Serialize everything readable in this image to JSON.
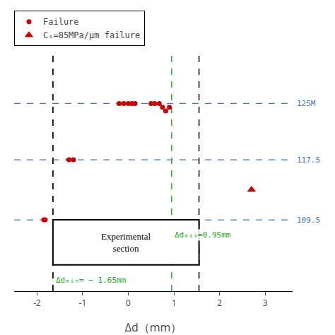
{
  "chart_data": {
    "type": "scatter",
    "xlabel": "Δd（mm）",
    "xlim": [
      -2.5,
      3.6
    ],
    "xticks": [
      -2,
      -1,
      0,
      1,
      2,
      3
    ],
    "ylim": [
      100,
      132
    ],
    "tick_labels": "x",
    "grid": false,
    "legend": "upper left",
    "series": [
      {
        "name": "Failure",
        "type": "scatter",
        "marker": "circle",
        "color": "#CC0000",
        "x": [
          -1.85,
          -1.82,
          -1.3,
          -1.2,
          -0.2,
          -0.1,
          0.0,
          0.08,
          0.15,
          0.5,
          0.58,
          0.68,
          0.75,
          0.82,
          0.9
        ],
        "values": [
          109.5,
          109.5,
          117.5,
          117.5,
          125.0,
          125.0,
          125.0,
          125.0,
          125.0,
          125.0,
          125.0,
          125.0,
          124.5,
          124.0,
          124.5
        ]
      },
      {
        "name": "Cₛ=85MPa/μm failure",
        "type": "scatter",
        "marker": "triangle-up",
        "color": "#CC0000",
        "x": [
          2.7
        ],
        "values": [
          113.5
        ]
      }
    ],
    "hlines": [
      {
        "value": 125.0,
        "label": "125M"
      },
      {
        "value": 117.5,
        "label": "117.5"
      },
      {
        "value": 109.5,
        "label": "109.5"
      }
    ],
    "hline_color": "#4472C4",
    "hline_label_color": "#4472C4",
    "vlines": [
      {
        "x": -1.65,
        "color": "#22AA22"
      },
      {
        "x": 0.95,
        "color": "#22AA22"
      },
      {
        "x": -1.65,
        "color": "black"
      },
      {
        "x": 1.55,
        "color": "black"
      }
    ],
    "box": {
      "x0": -1.65,
      "x1": 1.55,
      "y0": 103.5,
      "y1": 109.5,
      "label": "Experimental\nsection"
    },
    "annotations": [
      {
        "text": "Δdₘᵢₙ= − 1.65mm",
        "x": -1.62,
        "y": 101.5,
        "color": "#22AA22"
      },
      {
        "text": "Δdₘₐₓ=0.95mm",
        "x": 0.98,
        "y": 107.5,
        "color": "#22AA22"
      }
    ]
  }
}
